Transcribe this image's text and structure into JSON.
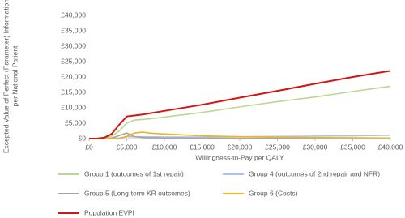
{
  "chart_data": {
    "type": "line",
    "y_label": [
      "Excepted Value of Perfect (Parameter) Information",
      "per National Patient"
    ],
    "x_label": "Willingness-to-Pay per QALY",
    "x": [
      0,
      1000,
      2000,
      3000,
      4000,
      5000,
      6000,
      7000,
      7500,
      8000,
      10000,
      15000,
      20000,
      25000,
      30000,
      35000,
      40000
    ],
    "series": [
      {
        "name": "Group 1  (outcomes of 1st repair)",
        "color": "#b9d890",
        "values": [
          0,
          0,
          100,
          800,
          2500,
          5000,
          6000,
          6200,
          6300,
          6400,
          7000,
          8500,
          10300,
          12000,
          13500,
          15300,
          17000
        ]
      },
      {
        "name": "Group 4 (outcomes of 2nd repair and NFR)",
        "color": "#a9c4e8",
        "values": [
          0,
          0,
          0,
          100,
          200,
          600,
          600,
          600,
          600,
          600,
          500,
          500,
          600,
          700,
          800,
          900,
          1100
        ]
      },
      {
        "name": "Group 5 (Long-term KR outcomes)",
        "color": "#a6a6a6",
        "values": [
          0,
          0,
          0,
          200,
          1000,
          1800,
          600,
          400,
          300,
          250,
          200,
          150,
          100,
          80,
          60,
          50,
          50
        ]
      },
      {
        "name": "Group 6 (Costs)",
        "color": "#f0b323",
        "values": [
          0,
          0,
          0,
          0,
          100,
          700,
          1800,
          2100,
          2000,
          1800,
          1500,
          900,
          600,
          450,
          300,
          250,
          200
        ]
      },
      {
        "name": "Population EVPI",
        "color": "#d41414",
        "values": [
          0,
          0,
          300,
          1500,
          4500,
          7200,
          7500,
          7800,
          8000,
          8200,
          9000,
          11000,
          13300,
          15500,
          17800,
          20000,
          22000
        ]
      }
    ],
    "xlim": [
      0,
      40000
    ],
    "xticks": [
      {
        "value": 0,
        "label": "£0"
      },
      {
        "value": 5000,
        "label": "£5,000"
      },
      {
        "value": 10000,
        "label": "£10,000"
      },
      {
        "value": 15000,
        "label": "£15,000"
      },
      {
        "value": 20000,
        "label": "£20,000"
      },
      {
        "value": 25000,
        "label": "£25,000"
      },
      {
        "value": 30000,
        "label": "£30,000"
      },
      {
        "value": 35000,
        "label": "£35,000"
      },
      {
        "value": 40000,
        "label": "£40,000"
      }
    ],
    "ylim": [
      0,
      40000
    ],
    "yticks": [
      {
        "value": 0,
        "label": "£0"
      },
      {
        "value": 5000,
        "label": "£5,000"
      },
      {
        "value": 10000,
        "label": "£10,000"
      },
      {
        "value": 15000,
        "label": "£15,000"
      },
      {
        "value": 20000,
        "label": "£20,000"
      },
      {
        "value": 25000,
        "label": "£25,000"
      },
      {
        "value": 30000,
        "label": "£30,000"
      },
      {
        "value": 35000,
        "label": "£35,000"
      },
      {
        "value": 40000,
        "label": "£40,000"
      }
    ],
    "grid": false
  }
}
